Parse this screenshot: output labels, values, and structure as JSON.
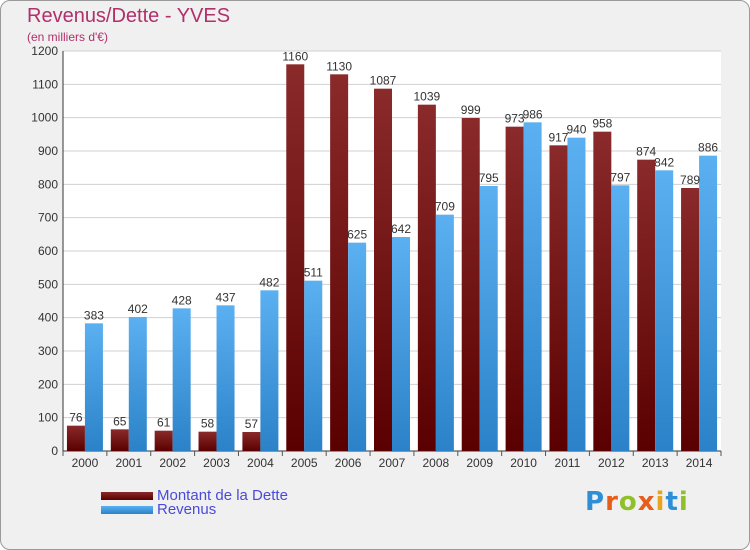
{
  "title": "Revenus/Dette - YVES",
  "subtitle": "(en milliers d'€)",
  "logo_text": "Proxiti",
  "colors": {
    "dette": "#7a1010",
    "revenus": "#3c9ee6",
    "title": "#b0306a",
    "legend_text": "#4a4ad8"
  },
  "chart_data": {
    "type": "bar",
    "categories": [
      "2000",
      "2001",
      "2002",
      "2003",
      "2004",
      "2005",
      "2006",
      "2007",
      "2008",
      "2009",
      "2010",
      "2011",
      "2012",
      "2013",
      "2014"
    ],
    "series": [
      {
        "name": "Montant de la Dette",
        "color": "#7a1010",
        "values": [
          76,
          65,
          61,
          58,
          57,
          1160,
          1130,
          1087,
          1039,
          999,
          973,
          917,
          958,
          874,
          789
        ]
      },
      {
        "name": "Revenus",
        "color": "#3c9ee6",
        "values": [
          383,
          402,
          428,
          437,
          482,
          511,
          625,
          642,
          709,
          795,
          986,
          940,
          797,
          842,
          886
        ]
      }
    ],
    "title": "Revenus/Dette - YVES",
    "subtitle": "(en milliers d'€)",
    "ylim": [
      0,
      1200
    ],
    "yticks": [
      0,
      100,
      200,
      300,
      400,
      500,
      600,
      700,
      800,
      900,
      1000,
      1100,
      1200
    ],
    "grid": true,
    "legend": "bottom-left"
  }
}
